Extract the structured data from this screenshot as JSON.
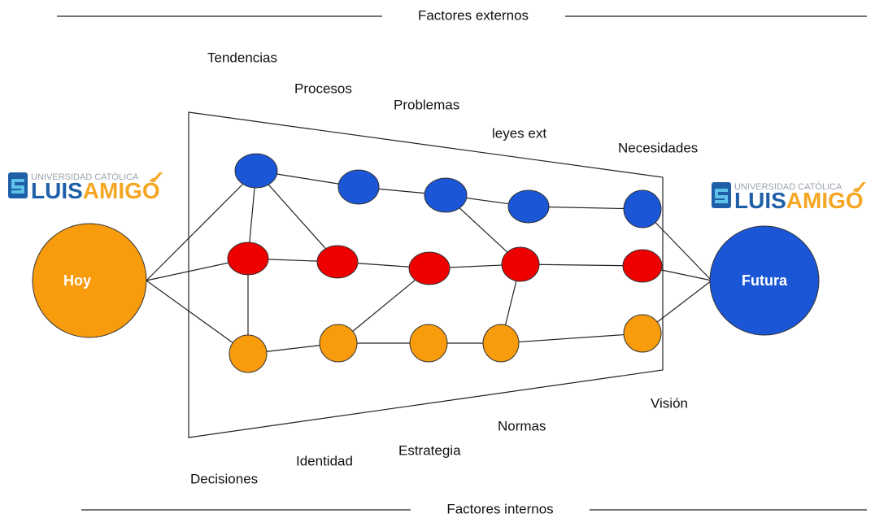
{
  "header": {
    "title": "Factores externos"
  },
  "footer": {
    "title": "Factores internos"
  },
  "external_factors": [
    "Tendencias",
    "Procesos",
    "Problemas",
    "leyes ext",
    "Necesidades"
  ],
  "internal_factors": [
    "Decisiones",
    "Identidad",
    "Estrategia",
    "Normas",
    "Visión"
  ],
  "start": {
    "label": "Hoy"
  },
  "end": {
    "label": "Futura"
  },
  "logos": [
    {
      "line1": "UNIVERSIDAD CATÓLICA",
      "name_a": "LUIS",
      "name_b": "AMIGÓ"
    },
    {
      "line1": "UNIVERSIDAD CATÓLICA",
      "name_a": "LUIS",
      "name_b": "AMIGÓ"
    }
  ]
}
